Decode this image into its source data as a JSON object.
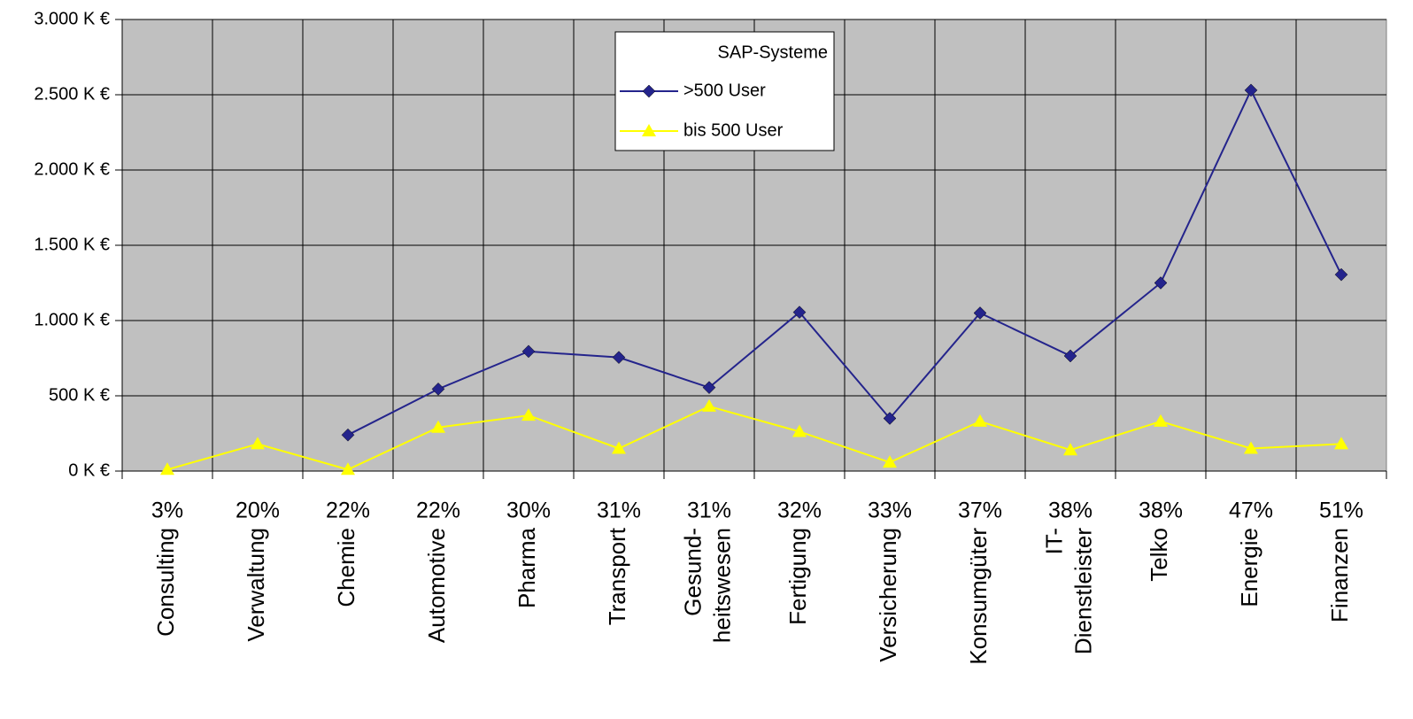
{
  "chart_data": {
    "type": "line",
    "categories": [
      "Consulting",
      "Verwaltung",
      "Chemie",
      "Automotive",
      "Pharma",
      "Transport",
      [
        "Gesund-",
        "heitswesen"
      ],
      "Fertigung",
      "Versicherung",
      "Konsumgüter",
      [
        "IT-",
        "Dienstleister"
      ],
      "Telko",
      "Energie",
      "Finanzen"
    ],
    "shares": [
      {
        "value": 3,
        "label": "3%"
      },
      {
        "value": 20,
        "label": "20%"
      },
      {
        "value": 22,
        "label": "22%"
      },
      {
        "value": 22,
        "label": "22%"
      },
      {
        "value": 30,
        "label": "30%"
      },
      {
        "value": 31,
        "label": "31%"
      },
      {
        "value": 31,
        "label": "31%"
      },
      {
        "value": 32,
        "label": "32%"
      },
      {
        "value": 33,
        "label": "33%"
      },
      {
        "value": 37,
        "label": "37%"
      },
      {
        "value": 38,
        "label": "38%"
      },
      {
        "value": 38,
        "label": "38%"
      },
      {
        "value": 47,
        "label": "47%"
      },
      {
        "value": 51,
        "label": "51%"
      }
    ],
    "legend_title": "SAP-Systeme",
    "series": [
      {
        "name": ">500 User",
        "color": "#24248c",
        "marker": "diamond",
        "values": [
          null,
          null,
          240,
          545,
          795,
          755,
          555,
          1055,
          350,
          1050,
          765,
          1250,
          2530,
          1305
        ]
      },
      {
        "name": "bis 500 User",
        "color": "#ffff00",
        "marker": "triangle",
        "values": [
          10,
          180,
          10,
          290,
          370,
          150,
          430,
          262,
          58,
          330,
          140,
          330,
          150,
          180
        ]
      }
    ],
    "ylim": [
      0,
      3000
    ],
    "yticks": [
      {
        "value": 0,
        "label": "0 K €"
      },
      {
        "value": 500,
        "label": "500 K €"
      },
      {
        "value": 1000,
        "label": "1.000 K €"
      },
      {
        "value": 1500,
        "label": "1.500 K €"
      },
      {
        "value": 2000,
        "label": "2.000 K €"
      },
      {
        "value": 2500,
        "label": "2.500 K €"
      },
      {
        "value": 3000,
        "label": "3.000 K €"
      }
    ],
    "grid": true,
    "plot_background": "#c0c0c0"
  }
}
